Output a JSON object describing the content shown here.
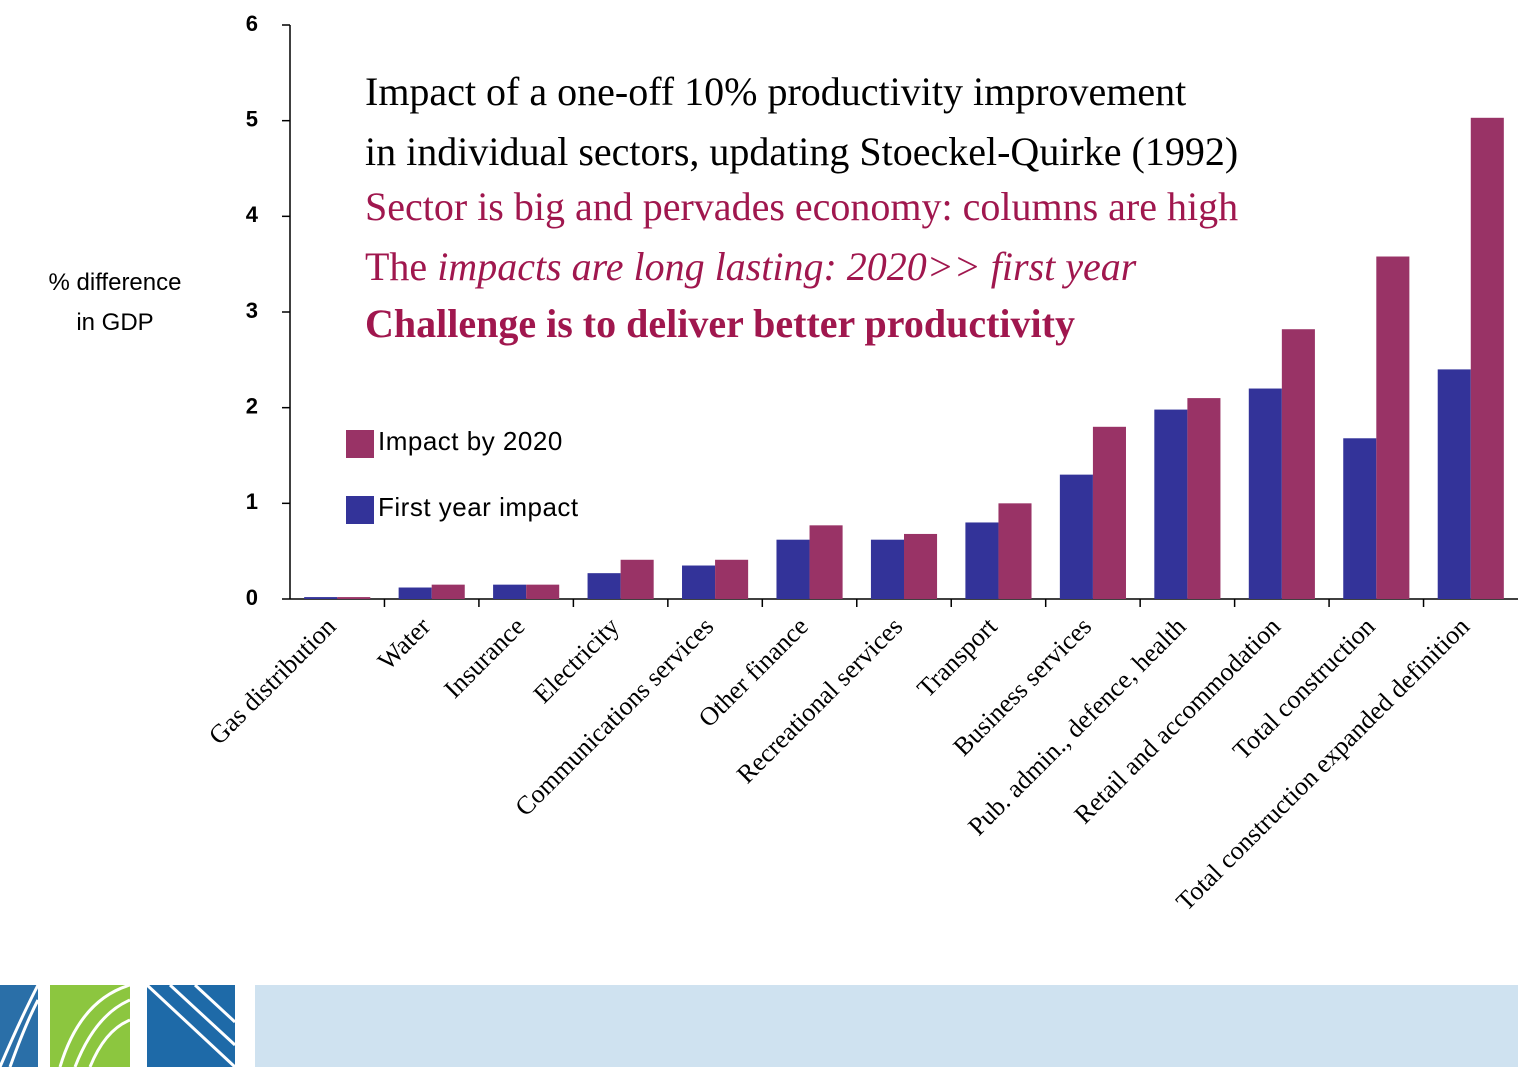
{
  "chart_data": {
    "type": "bar",
    "y_label": [
      "% difference",
      "in GDP"
    ],
    "annotations": [
      [
        {
          "text": "Impact of a one-off 10% productivity improvement",
          "color": "#000000"
        }
      ],
      [
        {
          "text": "in individual sectors, updating Stoeckel-Quirke (1992)",
          "color": "#000000"
        }
      ],
      [
        {
          "text": "Sector is big and pervades economy: columns are high",
          "color": "#a0174e"
        }
      ],
      [
        {
          "text": "The ",
          "color": "#a0174e"
        },
        {
          "text": "impacts are long lasting: 2020>> first year",
          "color": "#a0174e",
          "italic": true
        }
      ],
      [
        {
          "text": "Challenge is to deliver better productivity",
          "color": "#a0174e",
          "bold": true
        }
      ]
    ],
    "categories": [
      "Gas distribution",
      "Water",
      "Insurance",
      "Electricity",
      "Communications services",
      "Other finance",
      "Recreational services",
      "Transport",
      "Business services",
      "Pub. admin., defence, health",
      "Retail and accommodation",
      "Total construction",
      "Total construction expanded definition"
    ],
    "series": [
      {
        "name": "First year impact",
        "color": "#333399",
        "values": [
          0.02,
          0.12,
          0.15,
          0.27,
          0.35,
          0.62,
          0.62,
          0.8,
          1.3,
          1.98,
          2.2,
          1.68,
          2.4
        ]
      },
      {
        "name": "Impact by 2020",
        "color": "#993366",
        "values": [
          0.02,
          0.15,
          0.15,
          0.41,
          0.41,
          0.77,
          0.68,
          1.0,
          1.8,
          2.1,
          2.82,
          3.58,
          5.03
        ]
      }
    ],
    "ylim": [
      0,
      6
    ],
    "yticks": [
      0,
      1,
      2,
      3,
      4,
      5,
      6
    ],
    "grid": false,
    "legend": "upper left"
  }
}
